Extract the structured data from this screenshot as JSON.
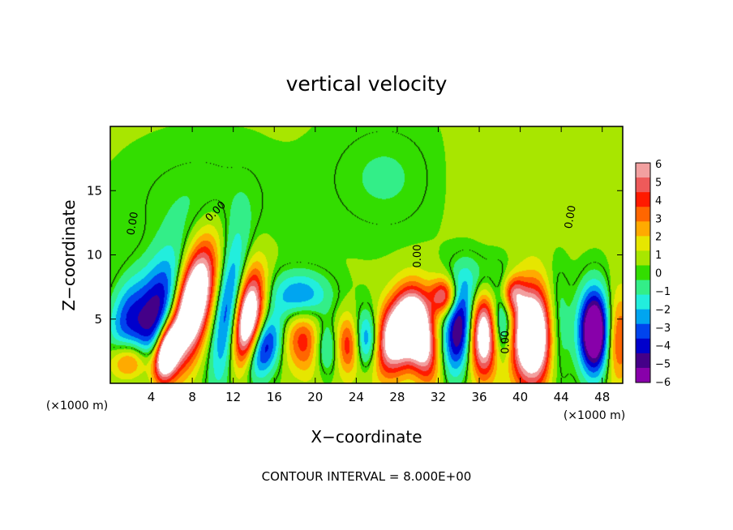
{
  "chart_data": {
    "type": "heatmap",
    "title": "vertical velocity",
    "xlabel": "X−coordinate",
    "ylabel": "Z−coordinate",
    "x_unit_left": "(×1000 m)",
    "x_unit_right": "(×1000 m)",
    "footer": "CONTOUR INTERVAL = 8.000E+00",
    "xlim": [
      0,
      50
    ],
    "ylim": [
      0,
      20
    ],
    "x_ticks": [
      4,
      8,
      12,
      16,
      20,
      24,
      28,
      32,
      36,
      40,
      44,
      48
    ],
    "y_ticks": [
      5,
      10,
      15
    ],
    "colorbar": {
      "min": -6,
      "max": 6,
      "labels": [
        "6",
        "5",
        "4",
        "3",
        "2",
        "1",
        "0",
        "−1",
        "−2",
        "−3",
        "−4",
        "−5",
        "−6"
      ],
      "colors": [
        "#f2a0a0",
        "#ee5a5a",
        "#ff1a00",
        "#ff6600",
        "#ffaa00",
        "#e6e600",
        "#a8e600",
        "#33dd00",
        "#33ee88",
        "#22eedd",
        "#00a5f0",
        "#0044ee",
        "#0000cc",
        "#440088",
        "#8800aa"
      ]
    },
    "contour_label": "0.00",
    "background_value": 0.5,
    "features": [
      {
        "x": 8,
        "z": 6.2,
        "sx": 1.3,
        "sz": 3.2,
        "tilt": 0.25,
        "amp": 10
      },
      {
        "x": 2,
        "z": 1.7,
        "sx": 1.4,
        "sz": 1.1,
        "tilt": 0,
        "amp": 4.5
      },
      {
        "x": 5.5,
        "z": 2.4,
        "sx": 0.8,
        "sz": 1.5,
        "tilt": 0.2,
        "amp": 9
      },
      {
        "x": 4.5,
        "z": 5.5,
        "sx": 1.6,
        "sz": 3.2,
        "tilt": 0.3,
        "amp": -5.5
      },
      {
        "x": 1.5,
        "z": 5.2,
        "sx": 1.2,
        "sz": 2.2,
        "tilt": 0.2,
        "amp": -3
      },
      {
        "x": 11.5,
        "z": 5.5,
        "sx": 1,
        "sz": 4,
        "tilt": 0.15,
        "amp": -4.5
      },
      {
        "x": 13.4,
        "z": 5,
        "sx": 1,
        "sz": 2.6,
        "tilt": 0.15,
        "amp": 9
      },
      {
        "x": 15,
        "z": 2.8,
        "sx": 1.2,
        "sz": 1.8,
        "tilt": 0.3,
        "amp": -5
      },
      {
        "x": 18.5,
        "z": 6.8,
        "sx": 2,
        "sz": 1.3,
        "tilt": 0,
        "amp": -3.5
      },
      {
        "x": 19.2,
        "z": 3.2,
        "sx": 1.6,
        "sz": 1.8,
        "tilt": -0.2,
        "amp": 4
      },
      {
        "x": 21,
        "z": 2.7,
        "sx": 1,
        "sz": 1.5,
        "tilt": 0,
        "amp": -4
      },
      {
        "x": 23.2,
        "z": 3,
        "sx": 0.9,
        "sz": 1.6,
        "tilt": 0,
        "amp": 4
      },
      {
        "x": 25,
        "z": 3.3,
        "sx": 0.9,
        "sz": 1.6,
        "tilt": 0,
        "amp": -4.5
      },
      {
        "x": 28.3,
        "z": 4,
        "sx": 1.6,
        "sz": 2.2,
        "tilt": 0.3,
        "amp": 9
      },
      {
        "x": 30.4,
        "z": 3.2,
        "sx": 1,
        "sz": 2.2,
        "tilt": -0.2,
        "amp": 6
      },
      {
        "x": 32.6,
        "z": 6.8,
        "sx": 0.9,
        "sz": 1,
        "tilt": 0,
        "amp": 5
      },
      {
        "x": 34,
        "z": 4.2,
        "sx": 1,
        "sz": 2.4,
        "tilt": 0.1,
        "amp": -6
      },
      {
        "x": 36.5,
        "z": 3.8,
        "sx": 1,
        "sz": 2.3,
        "tilt": 0,
        "amp": 8
      },
      {
        "x": 38.2,
        "z": 4.5,
        "sx": 0.9,
        "sz": 2,
        "tilt": 0,
        "amp": -5
      },
      {
        "x": 39.2,
        "z": 7,
        "sx": 0.8,
        "sz": 1,
        "tilt": 0,
        "amp": 4
      },
      {
        "x": 41.2,
        "z": 3.7,
        "sx": 1.6,
        "sz": 2.7,
        "tilt": 0,
        "amp": 10
      },
      {
        "x": 43.5,
        "z": 4,
        "sx": 0.9,
        "sz": 3,
        "tilt": 0,
        "amp": -3.5
      },
      {
        "x": 47.3,
        "z": 4,
        "sx": 1.1,
        "sz": 2.3,
        "tilt": 0,
        "amp": -9
      },
      {
        "x": 49.4,
        "z": 3.5,
        "sx": 1,
        "sz": 2.5,
        "tilt": 0,
        "amp": 4
      },
      {
        "x": 36,
        "z": 8,
        "sx": 2.5,
        "sz": 1.5,
        "tilt": 0,
        "amp": -1.5
      },
      {
        "x": 9,
        "z": 14,
        "sx": 5,
        "sz": 3,
        "tilt": 0,
        "amp": -0.9
      },
      {
        "x": 40,
        "z": 16,
        "sx": 6,
        "sz": 3,
        "tilt": 0,
        "amp": 0.6
      },
      {
        "x": 27,
        "z": 16,
        "sx": 4,
        "sz": 3,
        "tilt": 0,
        "amp": -1.1
      }
    ]
  }
}
